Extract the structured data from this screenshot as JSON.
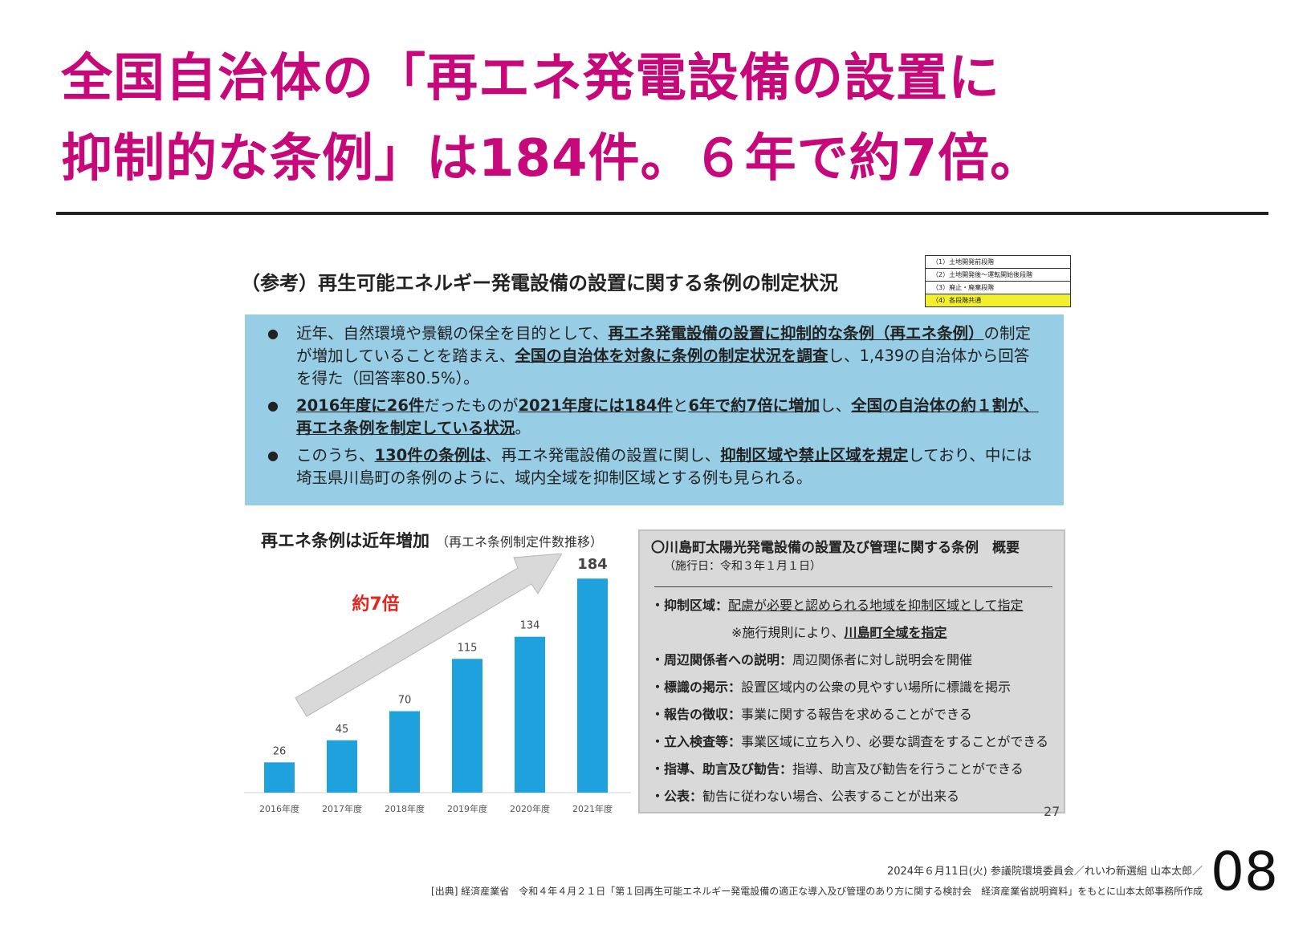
{
  "title": {
    "line1": "全国自治体の「再エネ発電設備の設置に",
    "line2": "抑制的な条例」は184件。６年で約7倍。"
  },
  "subtitle": "（参考）再生可能エネルギー発電設備の設置に関する条例の制定状況",
  "legend": [
    {
      "label": "（1）土地開発前段階",
      "highlight": false
    },
    {
      "label": "（2）土地開発後～運転開始後段階",
      "highlight": false
    },
    {
      "label": "（3）廃止・廃棄段階",
      "highlight": false
    },
    {
      "label": "（4）各段階共通",
      "highlight": true
    }
  ],
  "summary": {
    "bullet1": {
      "t1": "近年、自然環境や景観の保全を目的として、",
      "b1": "再エネ発電設備の設置に抑制的な条例（再エネ条例）",
      "t2": "の制定が増加していることを踏まえ、",
      "b2": "全国の自治体を対象に条例の制定状況を調査",
      "t3": "し、1,439の自治体から回答を得た（回答率80.5%）。"
    },
    "bullet2": {
      "b1": "2016年度に26件",
      "t1": "だったものが",
      "b2": "2021年度には184件",
      "t2": "と",
      "b3": "6年で約7倍に増加",
      "t3": "し、",
      "b4": "全国の自治体の約１割が、再エネ条例を制定している状況",
      "t4": "。"
    },
    "bullet3": {
      "t1": "このうち、",
      "b1": "130件の条例は",
      "t2": "、再エネ発電設備の設置に関し、",
      "b2": "抑制区域や禁止区域を規定",
      "t3": "しており、中には埼玉県川島町の条例のように、域内全域を抑制区域とする例も見られる。"
    }
  },
  "chart_title": {
    "main": "再エネ条例は近年増加",
    "sub": "（再エネ条例制定件数推移）"
  },
  "chart_data": {
    "type": "bar",
    "categories": [
      "2016年度",
      "2017年度",
      "2018年度",
      "2019年度",
      "2020年度",
      "2021年度"
    ],
    "values": [
      26,
      45,
      70,
      115,
      134,
      184
    ],
    "annotation": "約7倍",
    "ylim": [
      0,
      200
    ],
    "color": "#1ea1dc"
  },
  "ordinance": {
    "title": "〇川島町太陽光発電設備の設置及び管理に関する条例　概要",
    "date": "（施行日：令和３年１月１日）",
    "rows": [
      {
        "key": "・抑制区域：",
        "val": "配慮が必要と認められる地域を抑制区域として指定"
      },
      {
        "key": "・周辺関係者への説明：",
        "val": "周辺関係者に対し説明会を開催"
      },
      {
        "key": "・標識の掲示：",
        "val": "設置区域内の公衆の見やすい場所に標識を掲示"
      },
      {
        "key": "・報告の徴収：",
        "val": "事業に関する報告を求めることができる"
      },
      {
        "key": "・立入検査等：",
        "val": "事業区域に立ち入り、必要な調査をすることができる"
      },
      {
        "key": "・指導、助言及び勧告：",
        "val": "指導、助言及び勧告を行うことができる"
      },
      {
        "key": "・公表：",
        "val": "勧告に従わない場合、公表することが出来る"
      }
    ],
    "note_prefix": "※施行規則により、",
    "note_bold": "川島町全域を指定"
  },
  "page_number": "27",
  "footer": {
    "line1": "2024年６月11日(火) 参議院環境委員会／れいわ新選組 山本太郎／",
    "line2": "[出典] 経済産業省　令和４年４月２１日「第１回再生可能エネルギー発電設備の適正な導入及び管理のあり方に関する検討会　経済産業省説明資料」をもとに山本太郎事務所作成"
  },
  "slide_number": "08"
}
